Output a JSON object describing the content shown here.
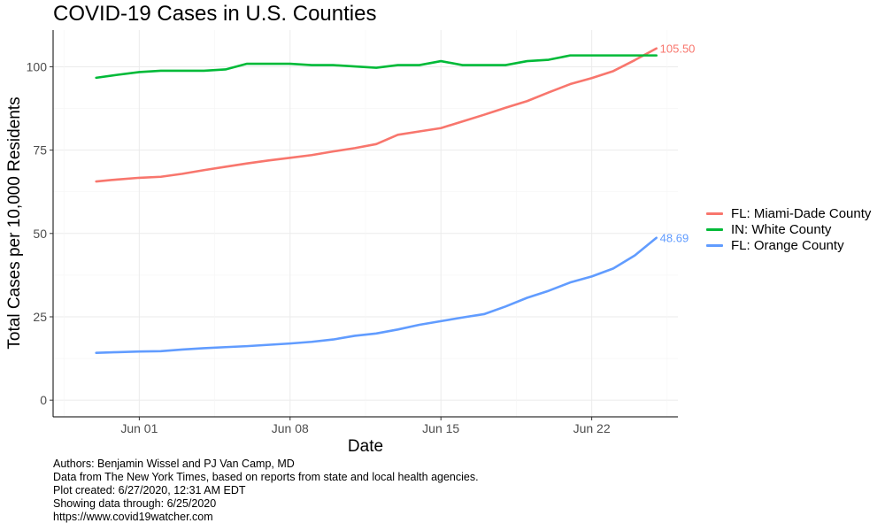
{
  "chart_data": {
    "type": "line",
    "title": "COVID-19 Cases in U.S. Counties",
    "xlabel": "Date",
    "ylabel": "Total Cases per 10,000 Residents",
    "x_tick_labels": [
      "Jun 01",
      "Jun 08",
      "Jun 15",
      "Jun 22"
    ],
    "x_tick_dates": [
      "2020-06-01",
      "2020-06-08",
      "2020-06-15",
      "2020-06-22"
    ],
    "y_ticks": [
      0,
      25,
      50,
      75,
      100
    ],
    "xlim": [
      "2020-05-28",
      "2020-06-26"
    ],
    "ylim": [
      -5,
      111
    ],
    "grid": true,
    "legend_position": "right",
    "x": [
      "2020-05-30",
      "2020-05-31",
      "2020-06-01",
      "2020-06-02",
      "2020-06-03",
      "2020-06-04",
      "2020-06-05",
      "2020-06-06",
      "2020-06-07",
      "2020-06-08",
      "2020-06-09",
      "2020-06-10",
      "2020-06-11",
      "2020-06-12",
      "2020-06-13",
      "2020-06-14",
      "2020-06-15",
      "2020-06-16",
      "2020-06-17",
      "2020-06-18",
      "2020-06-19",
      "2020-06-20",
      "2020-06-21",
      "2020-06-22",
      "2020-06-23",
      "2020-06-24",
      "2020-06-25"
    ],
    "series": [
      {
        "name": "FL: Miami-Dade County",
        "color": "#F8766D",
        "end_label": "105.50",
        "values": [
          65.6,
          66.2,
          66.7,
          67.0,
          67.9,
          69.0,
          70.0,
          71.0,
          71.9,
          72.7,
          73.5,
          74.6,
          75.6,
          76.8,
          79.6,
          80.6,
          81.6,
          83.6,
          85.6,
          87.7,
          89.7,
          92.3,
          94.8,
          96.6,
          98.7,
          102.0,
          105.5
        ]
      },
      {
        "name": "IN: White County",
        "color": "#00BA38",
        "end_label": "",
        "values": [
          96.7,
          97.6,
          98.4,
          98.8,
          98.8,
          98.8,
          99.2,
          100.9,
          100.9,
          100.9,
          100.5,
          100.5,
          100.1,
          99.7,
          100.5,
          100.5,
          101.7,
          100.5,
          100.5,
          100.5,
          101.7,
          102.1,
          103.4,
          103.4,
          103.4,
          103.4,
          103.4
        ]
      },
      {
        "name": "FL: Orange County",
        "color": "#619CFF",
        "end_label": "48.69",
        "values": [
          14.2,
          14.4,
          14.6,
          14.7,
          15.2,
          15.6,
          15.9,
          16.2,
          16.6,
          17.0,
          17.5,
          18.2,
          19.3,
          20.0,
          21.2,
          22.6,
          23.7,
          24.8,
          25.8,
          28.1,
          30.7,
          32.8,
          35.3,
          37.1,
          39.5,
          43.4,
          48.69
        ]
      }
    ]
  },
  "caption_lines": [
    "Authors: Benjamin Wissel and PJ Van Camp, MD",
    "Data from The New York Times, based on reports from state and local health agencies.",
    "Plot created: 6/27/2020, 12:31 AM EDT",
    "Showing data through: 6/25/2020",
    "https://www.covid19watcher.com"
  ]
}
